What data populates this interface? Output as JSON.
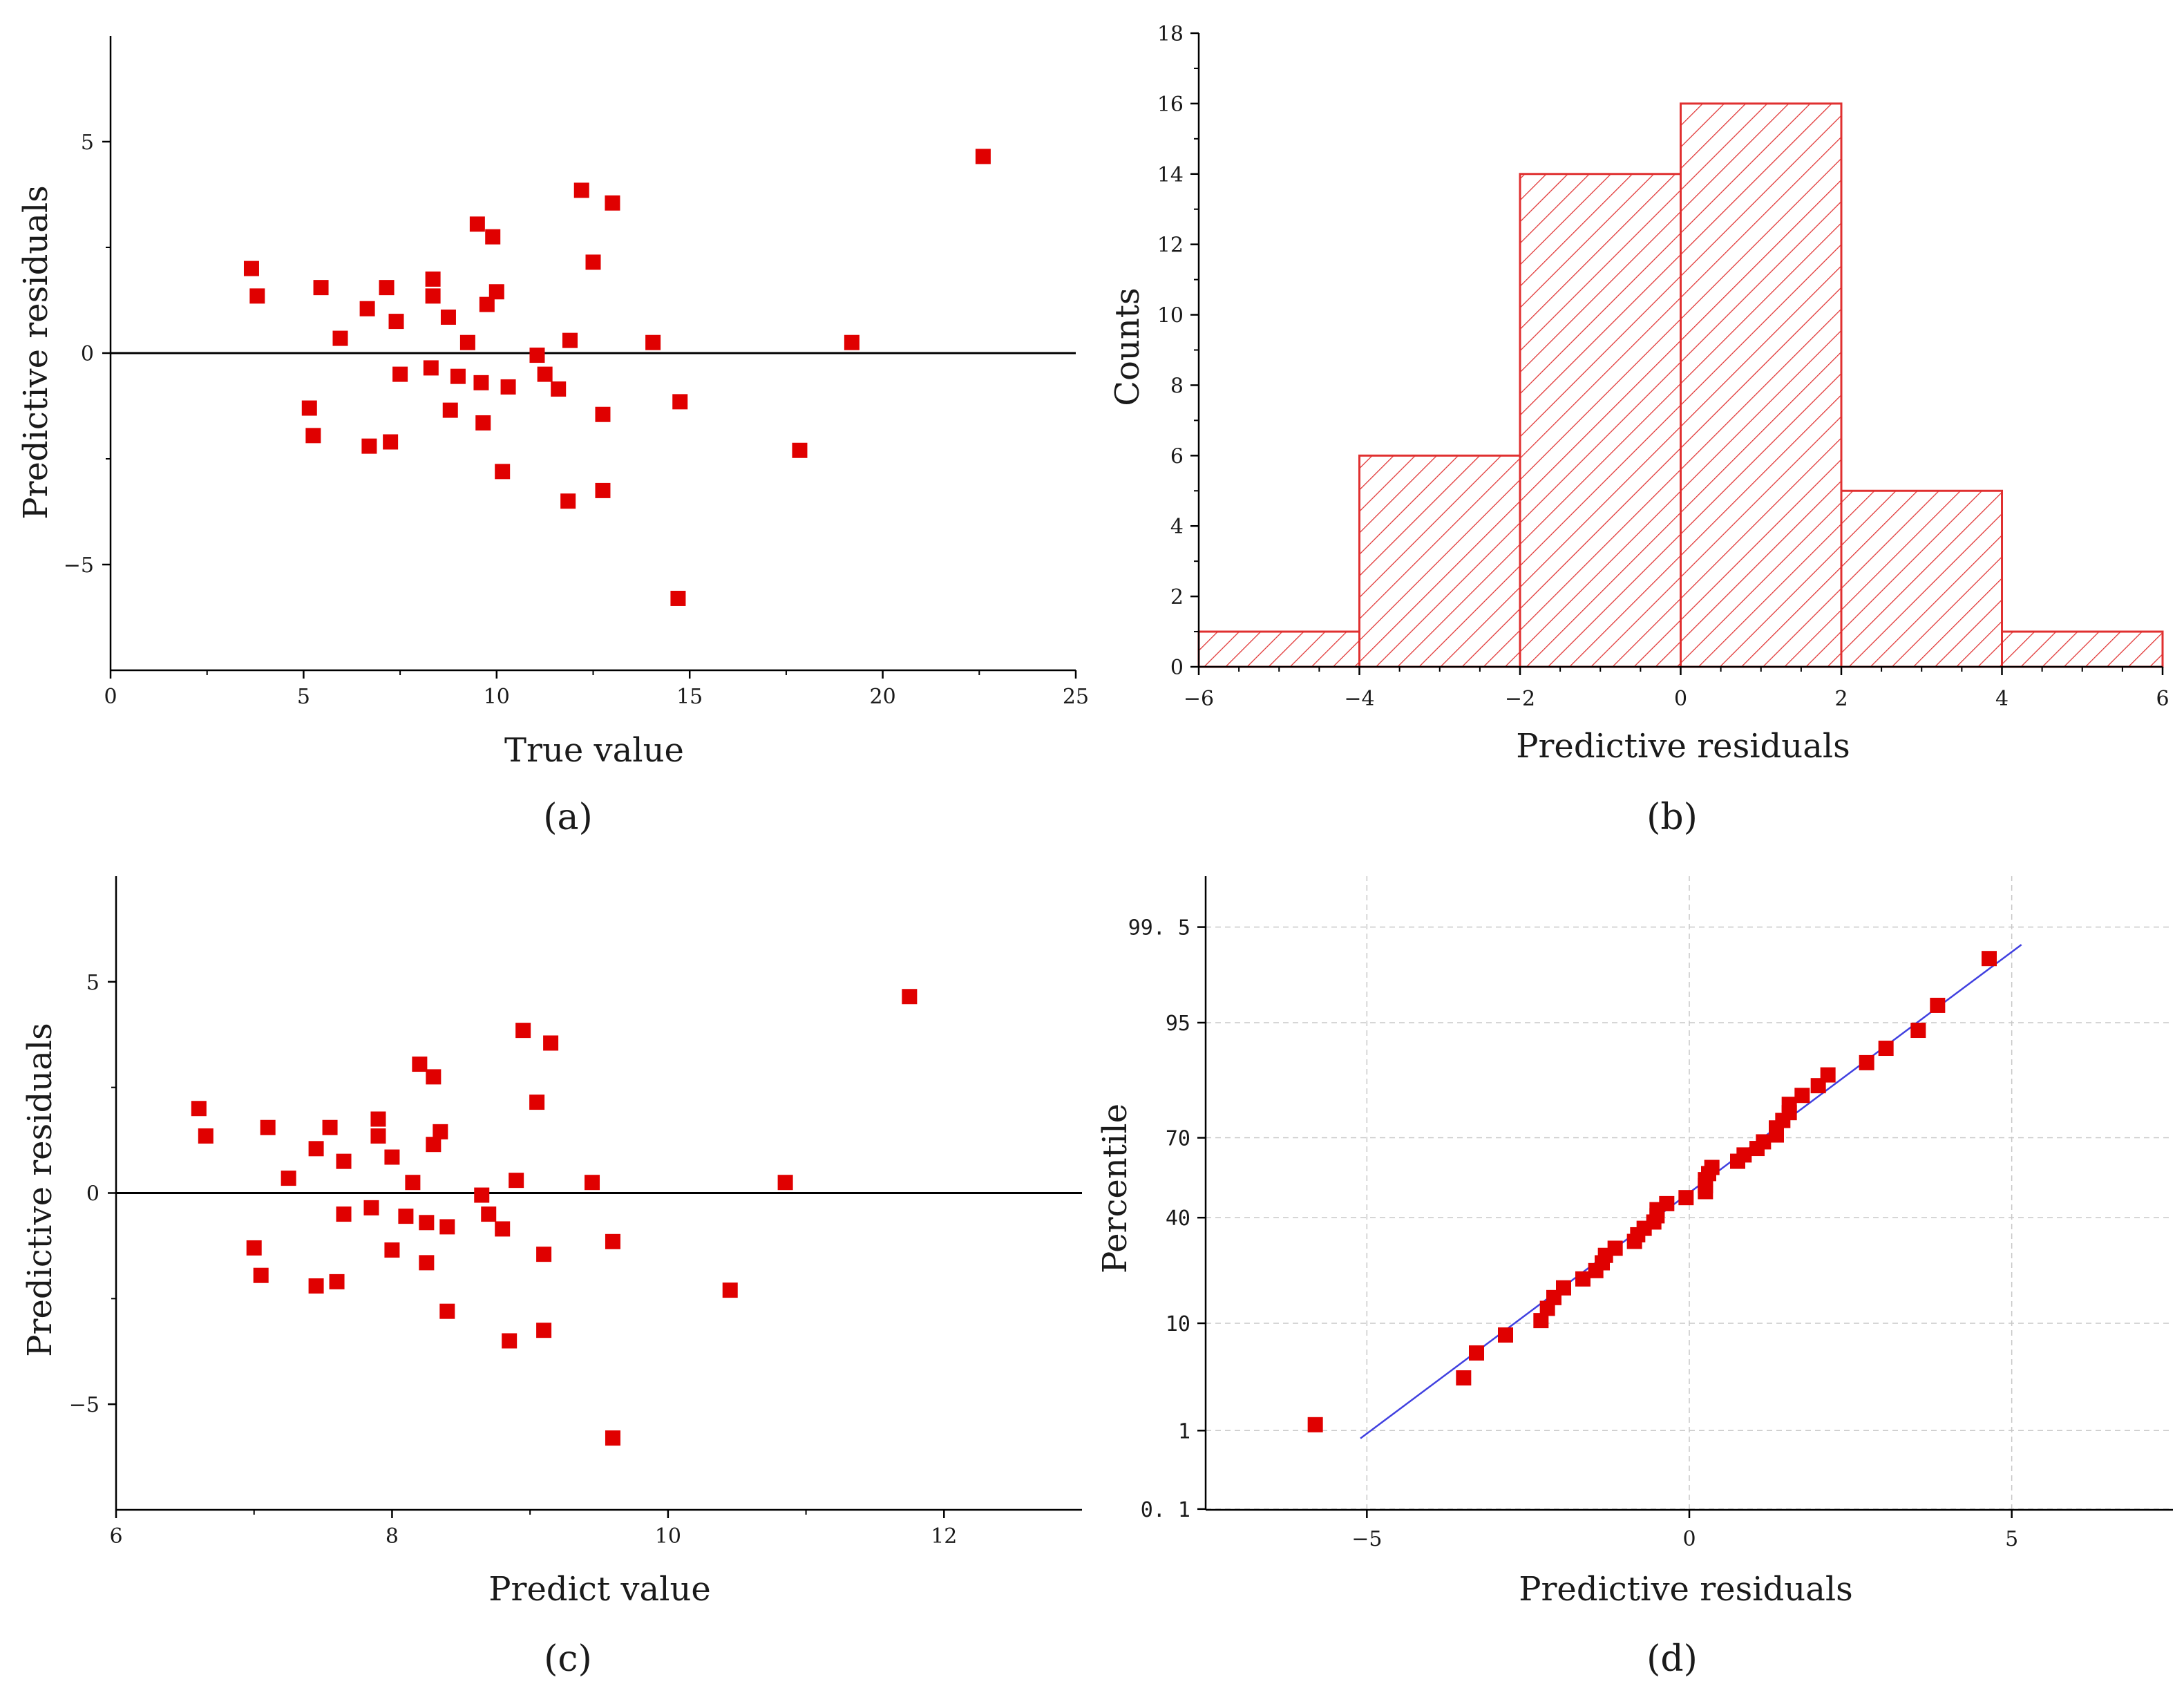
{
  "colors": {
    "marker": "#e00000",
    "hist_line": "#e03030",
    "fit_line": "#4040e0",
    "axis": "#000000",
    "grid": "#c8c8c8"
  },
  "chart_data": [
    {
      "id": "a",
      "panel_label": "(a)",
      "type": "scatter",
      "xlabel": "True value",
      "ylabel": "Predictive residuals",
      "xlim": [
        0,
        25
      ],
      "ylim": [
        -7.5,
        7.5
      ],
      "xticks": [
        0,
        5,
        10,
        15,
        20,
        25
      ],
      "yticks": [
        -5,
        0,
        5
      ],
      "zero_line": true,
      "points": [
        [
          3.65,
          2.0
        ],
        [
          3.8,
          1.35
        ],
        [
          5.15,
          -1.3
        ],
        [
          5.25,
          -1.95
        ],
        [
          5.45,
          1.55
        ],
        [
          5.95,
          0.35
        ],
        [
          6.65,
          1.05
        ],
        [
          6.7,
          -2.2
        ],
        [
          7.15,
          1.55
        ],
        [
          7.25,
          -2.1
        ],
        [
          7.4,
          0.75
        ],
        [
          7.5,
          -0.5
        ],
        [
          8.3,
          -0.35
        ],
        [
          8.35,
          1.75
        ],
        [
          8.35,
          1.35
        ],
        [
          8.75,
          0.85
        ],
        [
          8.8,
          -1.35
        ],
        [
          9.0,
          -0.55
        ],
        [
          9.25,
          0.25
        ],
        [
          9.5,
          3.05
        ],
        [
          9.6,
          -0.7
        ],
        [
          9.65,
          -1.65
        ],
        [
          9.75,
          1.15
        ],
        [
          9.9,
          2.75
        ],
        [
          10.0,
          1.45
        ],
        [
          10.15,
          -2.8
        ],
        [
          10.3,
          -0.8
        ],
        [
          11.05,
          -0.05
        ],
        [
          11.25,
          -0.5
        ],
        [
          11.6,
          -0.85
        ],
        [
          11.85,
          -3.5
        ],
        [
          11.9,
          0.3
        ],
        [
          12.2,
          3.85
        ],
        [
          12.5,
          2.15
        ],
        [
          12.75,
          -1.45
        ],
        [
          12.75,
          -3.25
        ],
        [
          13.0,
          3.55
        ],
        [
          14.05,
          0.25
        ],
        [
          14.7,
          -5.8
        ],
        [
          14.75,
          -1.15
        ],
        [
          17.85,
          -2.3
        ],
        [
          19.2,
          0.25
        ],
        [
          22.6,
          4.65
        ]
      ]
    },
    {
      "id": "b",
      "panel_label": "(b)",
      "type": "bar",
      "subtype": "histogram",
      "xlabel": "Predictive residuals",
      "ylabel": "Counts",
      "xlim": [
        -6,
        6
      ],
      "ylim": [
        0,
        18
      ],
      "xticks": [
        -6,
        -4,
        -2,
        0,
        2,
        4,
        6
      ],
      "yticks": [
        0,
        2,
        4,
        6,
        8,
        10,
        12,
        14,
        16,
        18
      ],
      "bins": [
        [
          -6,
          -4
        ],
        [
          -4,
          -2
        ],
        [
          -2,
          0
        ],
        [
          0,
          2
        ],
        [
          2,
          4
        ],
        [
          4,
          6
        ]
      ],
      "values": [
        1,
        6,
        14,
        16,
        5,
        1
      ]
    },
    {
      "id": "c",
      "panel_label": "(c)",
      "type": "scatter",
      "xlabel": "Predict value",
      "ylabel": "Predictive residuals",
      "xlim": [
        6,
        13
      ],
      "ylim": [
        -7.5,
        7.5
      ],
      "xticks": [
        6,
        8,
        10,
        12
      ],
      "yticks": [
        -5,
        0,
        5
      ],
      "zero_line": true,
      "points": [
        [
          6.6,
          2.0
        ],
        [
          6.65,
          1.35
        ],
        [
          7.0,
          -1.3
        ],
        [
          7.05,
          -1.95
        ],
        [
          7.1,
          1.55
        ],
        [
          7.25,
          0.35
        ],
        [
          7.45,
          1.05
        ],
        [
          7.45,
          -2.2
        ],
        [
          7.55,
          1.55
        ],
        [
          7.6,
          -2.1
        ],
        [
          7.65,
          0.75
        ],
        [
          7.65,
          -0.5
        ],
        [
          7.85,
          -0.35
        ],
        [
          7.9,
          1.75
        ],
        [
          7.9,
          1.35
        ],
        [
          8.0,
          0.85
        ],
        [
          8.0,
          -1.35
        ],
        [
          8.1,
          -0.55
        ],
        [
          8.15,
          0.25
        ],
        [
          8.2,
          3.05
        ],
        [
          8.25,
          -0.7
        ],
        [
          8.25,
          -1.65
        ],
        [
          8.3,
          1.15
        ],
        [
          8.3,
          2.75
        ],
        [
          8.35,
          1.45
        ],
        [
          8.4,
          -2.8
        ],
        [
          8.4,
          -0.8
        ],
        [
          8.65,
          -0.05
        ],
        [
          8.7,
          -0.5
        ],
        [
          8.8,
          -0.85
        ],
        [
          8.85,
          -3.5
        ],
        [
          8.9,
          0.3
        ],
        [
          8.95,
          3.85
        ],
        [
          9.05,
          2.15
        ],
        [
          9.1,
          -1.45
        ],
        [
          9.1,
          -3.25
        ],
        [
          9.15,
          3.55
        ],
        [
          9.45,
          0.25
        ],
        [
          9.6,
          -5.8
        ],
        [
          9.6,
          -1.15
        ],
        [
          10.45,
          -2.3
        ],
        [
          10.85,
          0.25
        ],
        [
          11.75,
          4.65
        ]
      ]
    },
    {
      "id": "d",
      "panel_label": "(d)",
      "type": "scatter",
      "subtype": "normal-probability",
      "xlabel": "Predictive residuals",
      "ylabel": "Percentile",
      "xlim": [
        -7.5,
        7.5
      ],
      "xticks": [
        -5,
        0,
        5
      ],
      "yticks": [
        0.1,
        1,
        10,
        40,
        70,
        95,
        99.5
      ],
      "ytick_labels": [
        "0. 1",
        "1",
        "10",
        "40",
        "70",
        "95",
        "99. 5"
      ],
      "grid": true,
      "fit_line": {
        "x": [
          -5.1,
          5.15
        ]
      },
      "points": [
        -5.8,
        -3.5,
        -3.3,
        -2.85,
        -2.3,
        -2.2,
        -2.1,
        -1.95,
        -1.65,
        -1.45,
        -1.35,
        -1.3,
        -1.15,
        -0.85,
        -0.8,
        -0.7,
        -0.55,
        -0.5,
        -0.5,
        -0.35,
        -0.05,
        0.25,
        0.25,
        0.25,
        0.3,
        0.35,
        0.75,
        0.85,
        1.05,
        1.15,
        1.35,
        1.35,
        1.45,
        1.55,
        1.55,
        1.75,
        2.0,
        2.15,
        2.75,
        3.05,
        3.55,
        3.85,
        4.65
      ]
    }
  ]
}
